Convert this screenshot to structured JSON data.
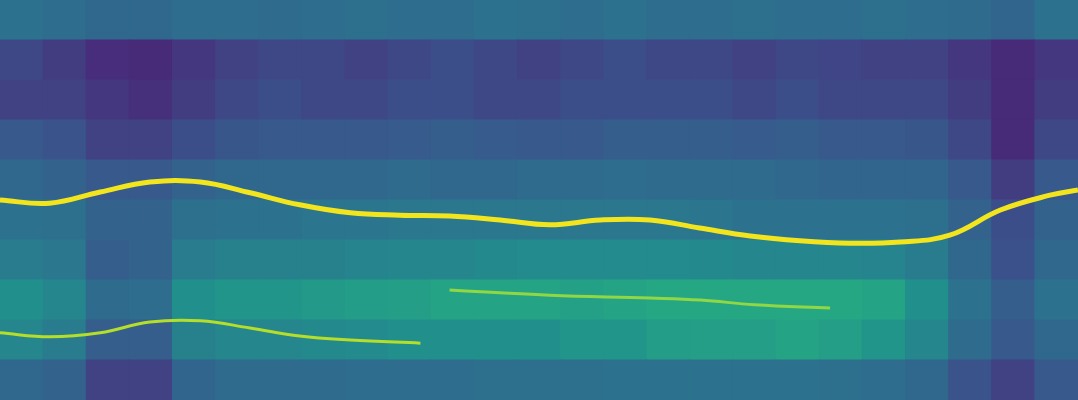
{
  "chart_data": {
    "type": "heatmap",
    "xlim": [
      0,
      100
    ],
    "ylim": [
      0,
      100
    ],
    "grid": false,
    "tick_labels": false,
    "cell_x_edges": [
      0,
      4,
      8,
      12,
      16,
      20,
      24,
      28,
      32,
      36,
      40,
      44,
      48,
      52,
      56,
      60,
      64,
      68,
      72,
      76,
      80,
      84,
      88,
      92,
      96,
      100
    ],
    "cell_y_edges": [
      100,
      90,
      80,
      70,
      60,
      50,
      40,
      30,
      20,
      10,
      0
    ],
    "zlim": [
      0,
      1
    ],
    "cells": [
      [
        0.38,
        0.36,
        0.34,
        0.34,
        0.36,
        0.36,
        0.35,
        0.36,
        0.37,
        0.36,
        0.36,
        0.38,
        0.37,
        0.36,
        0.38,
        0.36,
        0.36,
        0.37,
        0.36,
        0.36,
        0.37,
        0.36,
        0.35,
        0.33,
        0.38
      ],
      [
        0.22,
        0.18,
        0.13,
        0.12,
        0.16,
        0.2,
        0.22,
        0.22,
        0.2,
        0.22,
        0.24,
        0.22,
        0.2,
        0.22,
        0.24,
        0.22,
        0.22,
        0.2,
        0.22,
        0.21,
        0.2,
        0.2,
        0.16,
        0.12,
        0.16
      ],
      [
        0.2,
        0.2,
        0.16,
        0.14,
        0.18,
        0.22,
        0.24,
        0.22,
        0.22,
        0.24,
        0.24,
        0.22,
        0.22,
        0.24,
        0.24,
        0.24,
        0.24,
        0.22,
        0.24,
        0.22,
        0.22,
        0.22,
        0.18,
        0.12,
        0.18
      ],
      [
        0.28,
        0.26,
        0.2,
        0.2,
        0.24,
        0.27,
        0.28,
        0.28,
        0.28,
        0.29,
        0.3,
        0.29,
        0.28,
        0.28,
        0.3,
        0.3,
        0.3,
        0.29,
        0.3,
        0.28,
        0.28,
        0.27,
        0.22,
        0.12,
        0.22
      ],
      [
        0.34,
        0.32,
        0.28,
        0.28,
        0.32,
        0.34,
        0.34,
        0.34,
        0.34,
        0.35,
        0.34,
        0.34,
        0.35,
        0.35,
        0.36,
        0.35,
        0.35,
        0.35,
        0.34,
        0.33,
        0.33,
        0.33,
        0.28,
        0.18,
        0.28
      ],
      [
        0.38,
        0.37,
        0.32,
        0.32,
        0.37,
        0.38,
        0.38,
        0.39,
        0.39,
        0.4,
        0.4,
        0.4,
        0.4,
        0.4,
        0.4,
        0.4,
        0.39,
        0.38,
        0.38,
        0.38,
        0.38,
        0.37,
        0.32,
        0.24,
        0.32
      ],
      [
        0.42,
        0.4,
        0.3,
        0.32,
        0.42,
        0.44,
        0.44,
        0.44,
        0.45,
        0.46,
        0.46,
        0.47,
        0.48,
        0.48,
        0.48,
        0.48,
        0.47,
        0.46,
        0.46,
        0.46,
        0.45,
        0.42,
        0.34,
        0.25,
        0.34
      ],
      [
        0.5,
        0.46,
        0.35,
        0.36,
        0.5,
        0.52,
        0.52,
        0.54,
        0.55,
        0.56,
        0.58,
        0.58,
        0.58,
        0.57,
        0.58,
        0.6,
        0.6,
        0.6,
        0.6,
        0.6,
        0.58,
        0.5,
        0.38,
        0.3,
        0.38
      ],
      [
        0.46,
        0.42,
        0.3,
        0.3,
        0.44,
        0.46,
        0.46,
        0.47,
        0.48,
        0.5,
        0.5,
        0.5,
        0.5,
        0.52,
        0.52,
        0.55,
        0.56,
        0.56,
        0.58,
        0.56,
        0.52,
        0.46,
        0.35,
        0.28,
        0.34
      ],
      [
        0.34,
        0.32,
        0.2,
        0.2,
        0.33,
        0.35,
        0.35,
        0.35,
        0.36,
        0.36,
        0.36,
        0.37,
        0.37,
        0.37,
        0.38,
        0.38,
        0.38,
        0.38,
        0.38,
        0.37,
        0.36,
        0.34,
        0.26,
        0.2,
        0.28
      ]
    ],
    "series": [
      {
        "type": "line",
        "color": "#f2e51d",
        "x": [
          0,
          4.6,
          9.3,
          13.9,
          18.6,
          23.2,
          27.8,
          32.5,
          37.1,
          41.7,
          46.4,
          51.0,
          55.7,
          60.3,
          64.9,
          69.6,
          74.2,
          78.8,
          83.5,
          88.1,
          92.8,
          97.4,
          100
        ],
        "values": [
          50,
          49.2,
          52,
          54.5,
          54.5,
          51.8,
          48.8,
          46.8,
          46.2,
          46,
          45,
          43.8,
          45,
          45,
          43,
          41,
          39.8,
          39.2,
          39.5,
          41.2,
          47.5,
          51.2,
          52.5
        ]
      },
      {
        "type": "line",
        "color": "#b5de2b",
        "x": [
          0,
          4.6,
          9.3,
          13.9,
          18.6,
          23.2,
          27.8,
          32.5,
          39
        ],
        "values": [
          16.8,
          15.8,
          16.8,
          19.5,
          19.8,
          18,
          16,
          15,
          14.2
        ]
      },
      {
        "type": "line",
        "color": "#8fd744",
        "x": [
          41.7,
          51,
          60.3,
          65,
          70,
          77
        ],
        "values": [
          27.5,
          26.2,
          25.5,
          25,
          23.8,
          23
        ]
      }
    ]
  }
}
